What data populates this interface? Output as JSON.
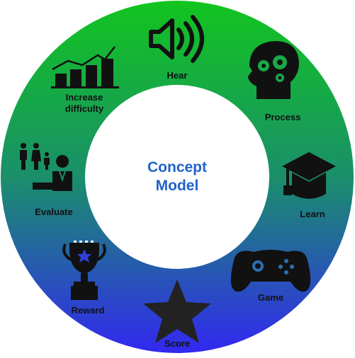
{
  "center": {
    "line1": "Concept",
    "line2": "Model"
  },
  "colors": {
    "ring_top": "#12c51f",
    "ring_mid": "#1a8f6a",
    "ring_bottom": "#3228f0",
    "center_text": "#1f63c9",
    "icon": "#111111"
  },
  "cycle": [
    {
      "label": "Hear",
      "icon": "speaker-icon"
    },
    {
      "label": "Process",
      "icon": "head-gears-icon"
    },
    {
      "label": "Learn",
      "icon": "graduation-cap-icon"
    },
    {
      "label": "Game",
      "icon": "gamepad-icon"
    },
    {
      "label": "Score",
      "icon": "star-icon"
    },
    {
      "label": "Reward",
      "icon": "trophy-icon"
    },
    {
      "label": "Evaluate",
      "icon": "evaluator-family-icon"
    },
    {
      "label1": "Increase",
      "label2": "difficulty",
      "icon": "rising-bar-chart-icon"
    }
  ]
}
